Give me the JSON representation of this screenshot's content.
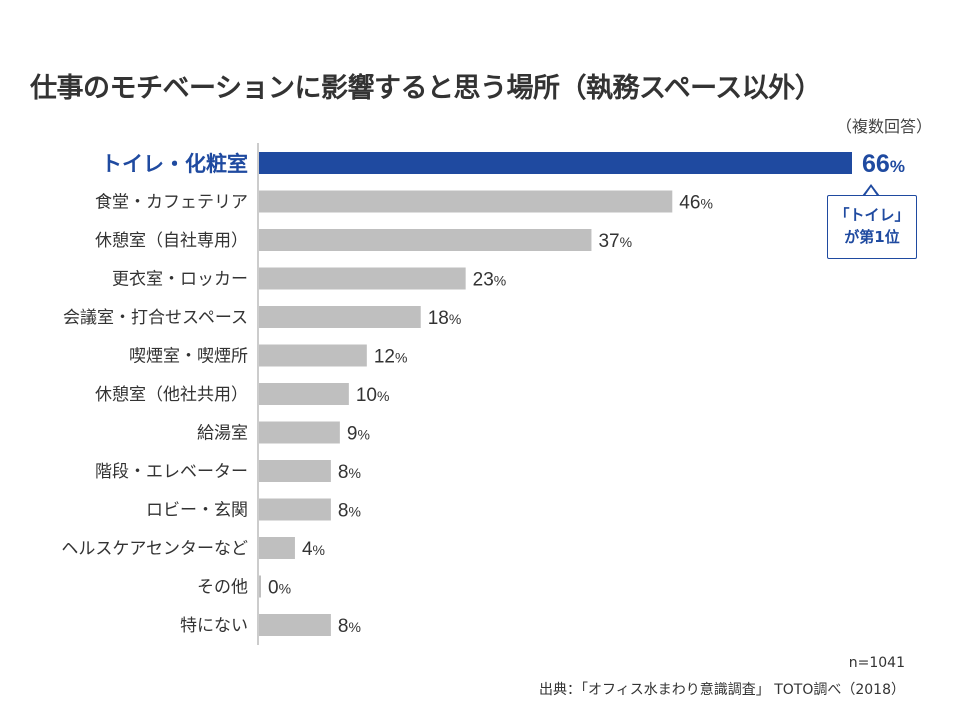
{
  "chart_data": {
    "type": "bar",
    "orientation": "horizontal",
    "title": "仕事のモチベーションに影響すると思う場所（執務スペース以外）",
    "subtitle": "（複数回答）",
    "categories": [
      "トイレ・化粧室",
      "食堂・カフェテリア",
      "休憩室（自社専用）",
      "更衣室・ロッカー",
      "会議室・打合せスペース",
      "喫煙室・喫煙所",
      "休憩室（他社共用）",
      "給湯室",
      "階段・エレベーター",
      "ロビー・玄関",
      "ヘルスケアセンターなど",
      "その他",
      "特にない"
    ],
    "values": [
      66,
      46,
      37,
      23,
      18,
      12,
      10,
      9,
      8,
      8,
      4,
      0,
      8
    ],
    "unit": "%",
    "highlight_index": 0,
    "xlim": [
      0,
      66
    ],
    "grid": false,
    "colors": {
      "highlight": "#1f4aa0",
      "default": "#bfbfbf",
      "axis": "#999999"
    },
    "annotation": {
      "line1": "「トイレ」",
      "line2": "が第1位"
    }
  },
  "footnote": {
    "n": "n=1041",
    "source": "出典：「オフィス水まわり意識調査」 TOTO調べ（2018）"
  }
}
